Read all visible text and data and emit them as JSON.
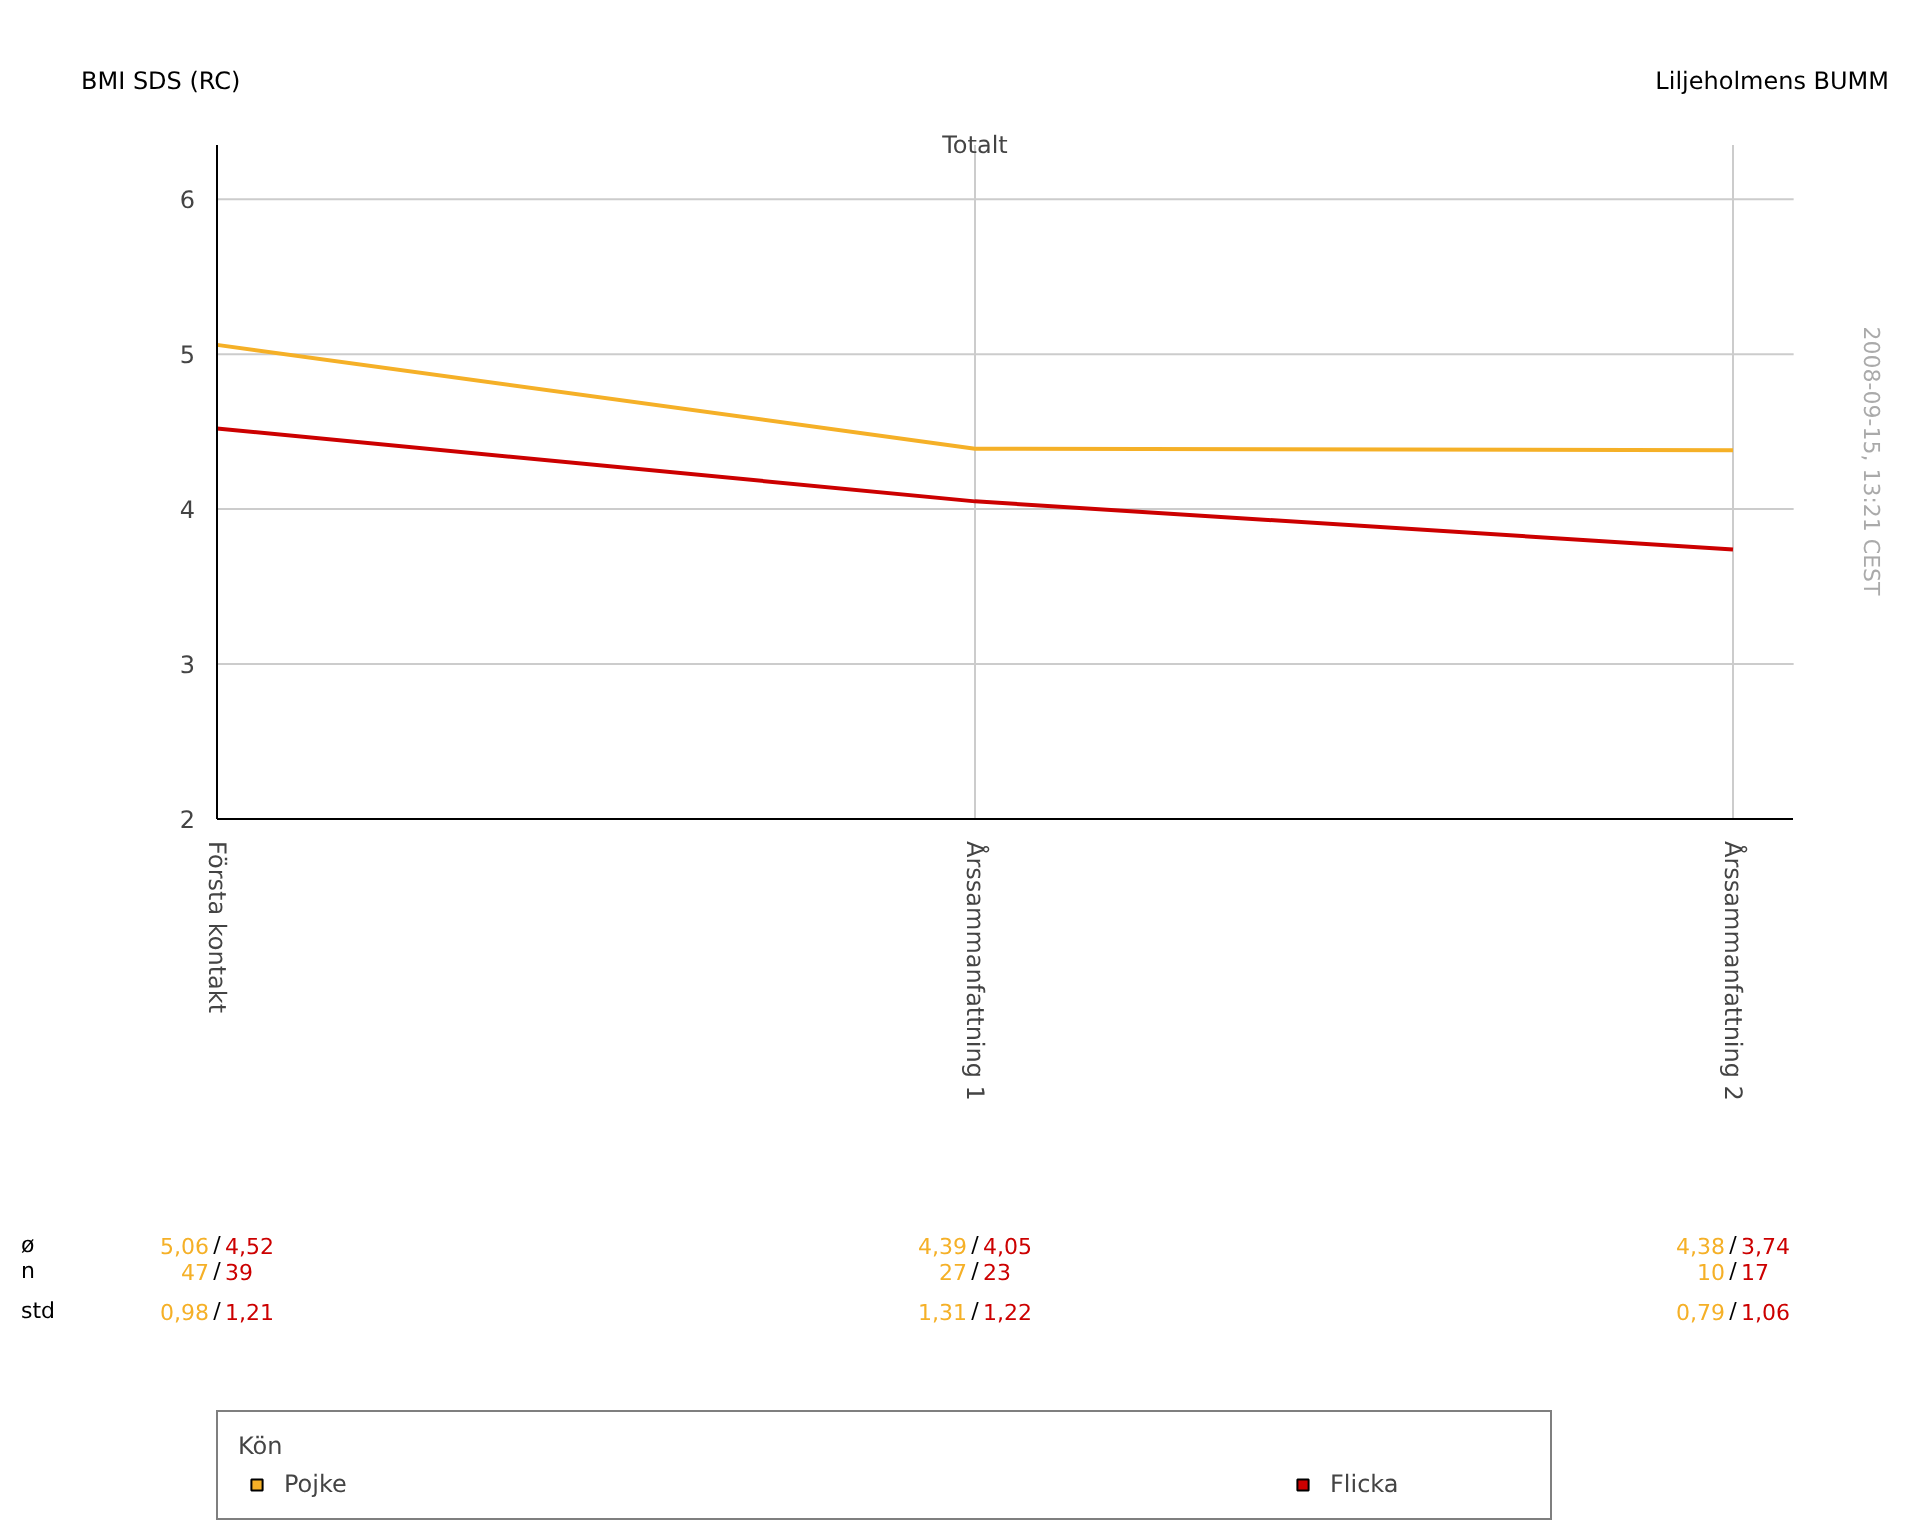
{
  "chart_data": {
    "type": "line",
    "title": "Totalt",
    "ylabel": "BMI SDS (RC)",
    "legend_title": "Kön",
    "categories": [
      "Första kontakt",
      "Årssammanfattning 1",
      "Årssammanfattning 2"
    ],
    "series": [
      {
        "name": "Pojke",
        "color": "#f5b027",
        "values": [
          5.06,
          4.39,
          4.38
        ]
      },
      {
        "name": "Flicka",
        "color": "#cc0000",
        "values": [
          4.52,
          4.05,
          3.74
        ]
      }
    ],
    "ylim": [
      2,
      6.35
    ],
    "yticks": [
      2,
      3,
      4,
      5,
      6
    ],
    "grid": true,
    "legend": "bottom",
    "marker": "none",
    "line_style": "solid",
    "annotations": [
      "Liljeholmens BUMM",
      "2008-09-15, 13:21 CEST",
      "ø",
      "n",
      "std",
      "/",
      "5,06",
      "4,52",
      "4,39",
      "4,05",
      "4,38",
      "3,74",
      "47",
      "39",
      "27",
      "23",
      "10",
      "17",
      "0,98",
      "1,21",
      "1,31",
      "1,22",
      "0,79",
      "1,06"
    ]
  }
}
